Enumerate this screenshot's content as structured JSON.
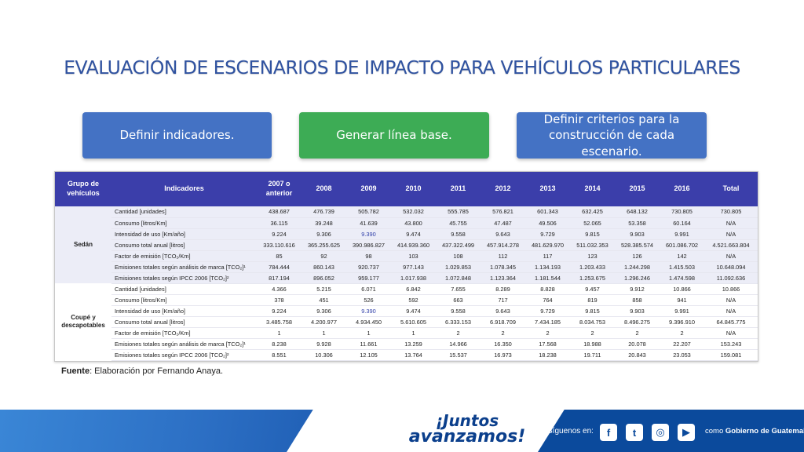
{
  "title": "EVALUACIÓN DE ESCENARIOS DE IMPACTO PARA VEHÍCULOS PARTICULARES",
  "steps": {
    "step1": "Definir indicadores.",
    "step2": "Generar línea base.",
    "step3_line1": "Definir criterios para la",
    "step3_line2": "construcción de cada escenario."
  },
  "table": {
    "headers": {
      "group_l1": "Grupo de",
      "group_l2": "vehículos",
      "indicators": "Indicadores",
      "y2007_l1": "2007 o",
      "y2007_l2": "anterior",
      "y2008": "2008",
      "y2009": "2009",
      "y2010": "2010",
      "y2011": "2011",
      "y2012": "2012",
      "y2013": "2013",
      "y2014": "2014",
      "y2015": "2015",
      "y2016": "2016",
      "total": "Total"
    },
    "groups": [
      {
        "name_l1": "Sedán",
        "name_l2": "",
        "rows": [
          {
            "indicator": "Cantidad [unidades]",
            "values": [
              "438.687",
              "476.739",
              "505.782",
              "532.032",
              "555.785",
              "576.821",
              "601.343",
              "632.425",
              "648.132",
              "730.805",
              "730.805"
            ]
          },
          {
            "indicator": "Consumo [litros/Km]",
            "values": [
              "36.115",
              "39.248",
              "41.639",
              "43.800",
              "45.755",
              "47.487",
              "49.506",
              "52.065",
              "53.358",
              "60.164",
              "N/A"
            ]
          },
          {
            "indicator": "Intensidad de uso [Km/año]",
            "values": [
              "9.224",
              "9.306",
              "9.390",
              "9.474",
              "9.558",
              "9.643",
              "9.729",
              "9.815",
              "9.903",
              "9.991",
              "N/A"
            ]
          },
          {
            "indicator": "Consumo total anual [litros]",
            "values": [
              "333.110.616",
              "365.255.625",
              "390.986.827",
              "414.939.360",
              "437.322.499",
              "457.914.278",
              "481.629.970",
              "511.032.353",
              "528.385.574",
              "601.086.702",
              "4.521.663.804"
            ]
          },
          {
            "indicator": "Factor de emisión [TCO₂/Km]",
            "values": [
              "85",
              "92",
              "98",
              "103",
              "108",
              "112",
              "117",
              "123",
              "126",
              "142",
              "N/A"
            ]
          },
          {
            "indicator": "Emisiones totales según análisis de marca [TCO₂]¹",
            "values": [
              "784.444",
              "860.143",
              "920.737",
              "977.143",
              "1.029.853",
              "1.078.345",
              "1.134.193",
              "1.203.433",
              "1.244.298",
              "1.415.503",
              "10.648.094"
            ]
          },
          {
            "indicator": "Emisiones totales según IPCC 2006 [TCO₂]²",
            "values": [
              "817.194",
              "896.052",
              "959.177",
              "1.017.938",
              "1.072.848",
              "1.123.364",
              "1.181.544",
              "1.253.675",
              "1.296.246",
              "1.474.598",
              "11.092.636"
            ]
          }
        ]
      },
      {
        "name_l1": "Coupé y",
        "name_l2": "descapotables",
        "rows": [
          {
            "indicator": "Cantidad [unidades]",
            "values": [
              "4.366",
              "5.215",
              "6.071",
              "6.842",
              "7.655",
              "8.289",
              "8.828",
              "9.457",
              "9.912",
              "10.866",
              "10.866"
            ]
          },
          {
            "indicator": "Consumo [litros/Km]",
            "values": [
              "378",
              "451",
              "526",
              "592",
              "663",
              "717",
              "764",
              "819",
              "858",
              "941",
              "N/A"
            ]
          },
          {
            "indicator": "Intensidad de uso [Km/año]",
            "values": [
              "9.224",
              "9.306",
              "9.390",
              "9.474",
              "9.558",
              "9.643",
              "9.729",
              "9.815",
              "9.903",
              "9.991",
              "N/A"
            ]
          },
          {
            "indicator": "Consumo total anual [litros]",
            "values": [
              "3.485.758",
              "4.200.977",
              "4.934.450",
              "5.610.605",
              "6.333.153",
              "6.918.709",
              "7.434.185",
              "8.034.753",
              "8.496.275",
              "9.396.910",
              "64.845.775"
            ]
          },
          {
            "indicator": "Factor de emisión [TCO₂/Km]",
            "values": [
              "1",
              "1",
              "1",
              "1",
              "2",
              "2",
              "2",
              "2",
              "2",
              "2",
              "N/A"
            ]
          },
          {
            "indicator": "Emisiones totales según análisis de marca [TCO₂]¹",
            "values": [
              "8.238",
              "9.928",
              "11.661",
              "13.259",
              "14.966",
              "16.350",
              "17.568",
              "18.988",
              "20.078",
              "22.207",
              "153.243"
            ]
          },
          {
            "indicator": "Emisiones totales según IPCC 2006 [TCO₂]²",
            "values": [
              "8.551",
              "10.306",
              "12.105",
              "13.764",
              "15.537",
              "16.973",
              "18.238",
              "19.711",
              "20.843",
              "23.053",
              "159.081"
            ]
          }
        ]
      }
    ]
  },
  "source": {
    "label": "Fuente",
    "text": ": Elaboración por Fernando Anaya."
  },
  "footer": {
    "slogan_l1": "¡Juntos",
    "slogan_l2": "avanzamos!",
    "follow": "Síguenos en:",
    "social": [
      {
        "icon": "facebook-icon",
        "glyph": "f"
      },
      {
        "icon": "twitter-icon",
        "glyph": "t"
      },
      {
        "icon": "instagram-icon",
        "glyph": "◎"
      },
      {
        "icon": "youtube-icon",
        "glyph": "▶"
      }
    ],
    "handle_prefix": "como ",
    "handle": "Gobierno de Guatemala"
  }
}
